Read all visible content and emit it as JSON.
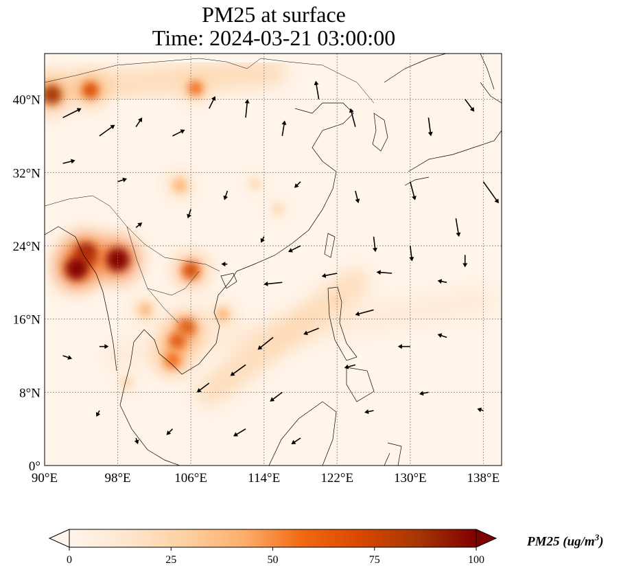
{
  "title": {
    "line1": "PM25 at surface",
    "line2": "Time: 2024-03-21 03:00:00"
  },
  "map": {
    "lon_range": [
      90,
      140
    ],
    "lat_range": [
      0,
      45
    ],
    "lon_ticks": [
      {
        "value": 90,
        "label": "90°E"
      },
      {
        "value": 98,
        "label": "98°E"
      },
      {
        "value": 106,
        "label": "106°E"
      },
      {
        "value": 114,
        "label": "114°E"
      },
      {
        "value": 122,
        "label": "122°E"
      },
      {
        "value": 130,
        "label": "130°E"
      },
      {
        "value": 138,
        "label": "138°E"
      }
    ],
    "lat_ticks": [
      {
        "value": 0,
        "label": "0°"
      },
      {
        "value": 8,
        "label": "8°N"
      },
      {
        "value": 16,
        "label": "16°N"
      },
      {
        "value": 24,
        "label": "24°N"
      },
      {
        "value": 32,
        "label": "32°N"
      },
      {
        "value": 40,
        "label": "40°N"
      }
    ],
    "gridlines": true,
    "background_color": "#fff5eb",
    "hotspots": [
      {
        "lon": 94.5,
        "lat": 23.0,
        "level": 100
      },
      {
        "lon": 98.0,
        "lat": 22.5,
        "level": 100
      },
      {
        "lon": 93.5,
        "lat": 21.5,
        "level": 95
      },
      {
        "lon": 90.8,
        "lat": 40.5,
        "level": 80
      },
      {
        "lon": 95.0,
        "lat": 41.0,
        "level": 65
      },
      {
        "lon": 106.5,
        "lat": 41.2,
        "level": 55
      },
      {
        "lon": 106.0,
        "lat": 21.3,
        "level": 70
      },
      {
        "lon": 105.5,
        "lat": 15.0,
        "level": 75
      },
      {
        "lon": 104.5,
        "lat": 13.5,
        "level": 65
      },
      {
        "lon": 104.0,
        "lat": 11.5,
        "level": 60
      },
      {
        "lon": 109.5,
        "lat": 16.5,
        "level": 40
      },
      {
        "lon": 104.8,
        "lat": 30.6,
        "level": 45
      },
      {
        "lon": 113.0,
        "lat": 30.8,
        "level": 30
      },
      {
        "lon": 115.5,
        "lat": 28.0,
        "level": 30
      },
      {
        "lon": 101.0,
        "lat": 17.0,
        "level": 40
      },
      {
        "lon": 99.0,
        "lat": 9.0,
        "level": 35
      },
      {
        "lon": 122.0,
        "lat": 18.0,
        "level": 25
      }
    ],
    "bands": [
      {
        "from": [
          98,
          12
        ],
        "to": [
          138,
          18
        ],
        "level": 20
      },
      {
        "from": [
          108,
          8
        ],
        "to": [
          124,
          20
        ],
        "level": 22
      },
      {
        "from": [
          90,
          41
        ],
        "to": [
          115,
          43
        ],
        "level": 30
      }
    ],
    "wind_vectors": [
      {
        "lon": 92,
        "lat": 38,
        "u": 3,
        "v": 1.5
      },
      {
        "lon": 96,
        "lat": 36,
        "u": 2.5,
        "v": 1.8
      },
      {
        "lon": 100,
        "lat": 37,
        "u": 1,
        "v": 1.5
      },
      {
        "lon": 104,
        "lat": 36,
        "u": 2,
        "v": 1
      },
      {
        "lon": 108,
        "lat": 39,
        "u": 1,
        "v": 2
      },
      {
        "lon": 112,
        "lat": 38,
        "u": 0.3,
        "v": 3
      },
      {
        "lon": 116,
        "lat": 36,
        "u": 0.4,
        "v": 2.5
      },
      {
        "lon": 120,
        "lat": 40,
        "u": -0.5,
        "v": 3
      },
      {
        "lon": 124,
        "lat": 37,
        "u": -0.8,
        "v": 3
      },
      {
        "lon": 132,
        "lat": 38,
        "u": 0.4,
        "v": -3
      },
      {
        "lon": 136,
        "lat": 40,
        "u": 1.5,
        "v": -2
      },
      {
        "lon": 92,
        "lat": 33,
        "u": 2,
        "v": 0.5
      },
      {
        "lon": 98,
        "lat": 31,
        "u": 1.5,
        "v": 0.5
      },
      {
        "lon": 106,
        "lat": 28,
        "u": -0.5,
        "v": -1.5
      },
      {
        "lon": 110,
        "lat": 30,
        "u": -0.5,
        "v": -1.5
      },
      {
        "lon": 118,
        "lat": 31,
        "u": -1,
        "v": -1
      },
      {
        "lon": 124,
        "lat": 30,
        "u": 0.5,
        "v": -2
      },
      {
        "lon": 130,
        "lat": 31,
        "u": 0.8,
        "v": -3
      },
      {
        "lon": 135,
        "lat": 27,
        "u": 0.5,
        "v": -3
      },
      {
        "lon": 138,
        "lat": 31,
        "u": 2.5,
        "v": -3.5
      },
      {
        "lon": 126,
        "lat": 25,
        "u": 0.3,
        "v": -2.5
      },
      {
        "lon": 130,
        "lat": 24,
        "u": 0.3,
        "v": -2.5
      },
      {
        "lon": 118,
        "lat": 24,
        "u": -2,
        "v": -1
      },
      {
        "lon": 122,
        "lat": 21,
        "u": -2.5,
        "v": -0.5
      },
      {
        "lon": 116,
        "lat": 20,
        "u": -3,
        "v": -0.3
      },
      {
        "lon": 128,
        "lat": 21,
        "u": -2.5,
        "v": 0.2
      },
      {
        "lon": 134,
        "lat": 20,
        "u": -1.5,
        "v": 0.3
      },
      {
        "lon": 126,
        "lat": 17,
        "u": -3,
        "v": -0.8
      },
      {
        "lon": 120,
        "lat": 15,
        "u": -2.5,
        "v": -1
      },
      {
        "lon": 115,
        "lat": 14,
        "u": -2.5,
        "v": -2
      },
      {
        "lon": 112,
        "lat": 11,
        "u": -2.5,
        "v": -1.8
      },
      {
        "lon": 108,
        "lat": 9,
        "u": -2,
        "v": -1.5
      },
      {
        "lon": 116,
        "lat": 8,
        "u": -2,
        "v": -1.5
      },
      {
        "lon": 124,
        "lat": 11,
        "u": -1.8,
        "v": -0.5
      },
      {
        "lon": 130,
        "lat": 13,
        "u": -2,
        "v": 0
      },
      {
        "lon": 134,
        "lat": 14,
        "u": -1.5,
        "v": 0.5
      },
      {
        "lon": 126,
        "lat": 6,
        "u": -1.5,
        "v": -0.3
      },
      {
        "lon": 132,
        "lat": 8,
        "u": -1.5,
        "v": -0.3
      },
      {
        "lon": 112,
        "lat": 4,
        "u": -2,
        "v": -1.2
      },
      {
        "lon": 118,
        "lat": 3,
        "u": -1.5,
        "v": -1
      },
      {
        "lon": 104,
        "lat": 4,
        "u": -1,
        "v": -1
      },
      {
        "lon": 96,
        "lat": 6,
        "u": -0.5,
        "v": -1
      },
      {
        "lon": 92,
        "lat": 12,
        "u": 1.5,
        "v": -0.5
      },
      {
        "lon": 96,
        "lat": 13,
        "u": 1.5,
        "v": 0
      },
      {
        "lon": 100,
        "lat": 3,
        "u": 0.3,
        "v": -1
      },
      {
        "lon": 138,
        "lat": 6,
        "u": -1,
        "v": 0.3
      },
      {
        "lon": 110,
        "lat": 22,
        "u": -1,
        "v": 0
      },
      {
        "lon": 114,
        "lat": 25,
        "u": -0.5,
        "v": -1
      },
      {
        "lon": 100,
        "lat": 26,
        "u": 1,
        "v": 0.8
      },
      {
        "lon": 136,
        "lat": 23,
        "u": 0,
        "v": -2
      }
    ]
  },
  "colorbar": {
    "label_main": "PM25 (ug/m",
    "label_sup": "3",
    "label_end": ")",
    "ticks": [
      {
        "value": 0,
        "label": "0"
      },
      {
        "value": 25,
        "label": "25"
      },
      {
        "value": 50,
        "label": "50"
      },
      {
        "value": 75,
        "label": "75"
      },
      {
        "value": 100,
        "label": "100"
      }
    ],
    "range": [
      0,
      100
    ],
    "colors": [
      "#fff5eb",
      "#fee6ce",
      "#fdd0a2",
      "#fdae6b",
      "#f16913",
      "#d94801",
      "#a63603",
      "#7f0000"
    ]
  }
}
